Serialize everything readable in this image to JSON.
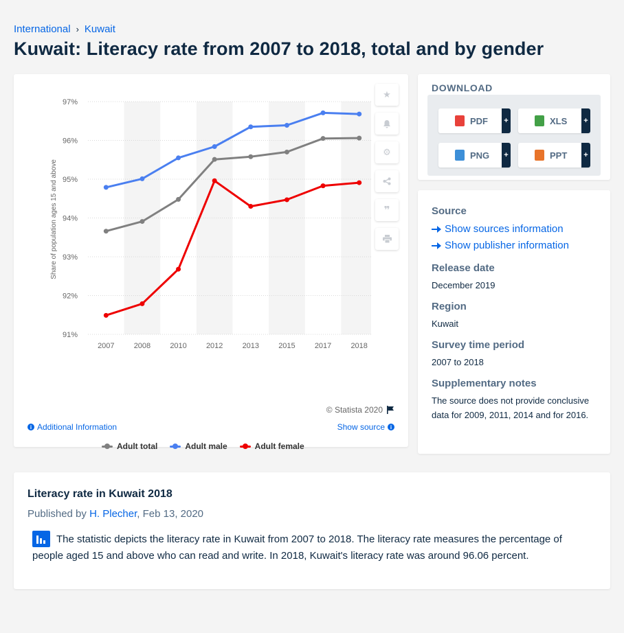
{
  "breadcrumb": {
    "items": [
      "International",
      "Kuwait"
    ],
    "separator": "›"
  },
  "page_title": "Kuwait: Literacy rate from 2007 to 2018, total and by gender",
  "chart_tools": {
    "icons": [
      "star-icon",
      "bell-icon",
      "gear-icon",
      "share-icon",
      "quote-icon",
      "print-icon"
    ]
  },
  "chart_footer": {
    "copyright": "© Statista 2020",
    "additional_info": "Additional Information",
    "show_source": "Show source"
  },
  "chart_data": {
    "type": "line",
    "categories": [
      "2007",
      "2008",
      "2010",
      "2012",
      "2013",
      "2015",
      "2017",
      "2018"
    ],
    "ylabel": "Share of population ages 15 and above",
    "ylim": [
      91,
      97
    ],
    "yticks": [
      "91%",
      "92%",
      "93%",
      "94%",
      "95%",
      "96%",
      "97%"
    ],
    "grid": true,
    "legend_position": "bottom",
    "series": [
      {
        "name": "Adult total",
        "color": "#808080",
        "values": [
          93.66,
          93.91,
          94.48,
          95.51,
          95.58,
          95.7,
          96.05,
          96.06
        ]
      },
      {
        "name": "Adult male",
        "color": "#4a7ff0",
        "values": [
          94.79,
          95.01,
          95.55,
          95.84,
          96.35,
          96.39,
          96.71,
          96.68
        ]
      },
      {
        "name": "Adult female",
        "color": "#ee0000",
        "values": [
          91.49,
          91.79,
          92.68,
          94.96,
          94.3,
          94.47,
          94.83,
          94.91
        ]
      }
    ]
  },
  "download": {
    "heading": "DOWNLOAD",
    "buttons": [
      {
        "label": "PDF",
        "color": "#e8413a"
      },
      {
        "label": "XLS",
        "color": "#43a047"
      },
      {
        "label": "PNG",
        "color": "#3d8fd8"
      },
      {
        "label": "PPT",
        "color": "#e8742a"
      }
    ],
    "plus": "+"
  },
  "meta": {
    "source_head": "Source",
    "show_sources": "Show sources information",
    "show_publisher": "Show publisher information",
    "release_head": "Release date",
    "release_val": "December 2019",
    "region_head": "Region",
    "region_val": "Kuwait",
    "survey_head": "Survey time period",
    "survey_val": "2007 to 2018",
    "notes_head": "Supplementary notes",
    "notes_val": "The source does not provide conclusive data for 2009, 2011, 2014 and for 2016."
  },
  "article": {
    "title": "Literacy rate in Kuwait 2018",
    "published_by": "Published by",
    "author": "H. Plecher",
    "date": ", Feb 13, 2020",
    "text": "The statistic depicts the literacy rate in Kuwait from 2007 to 2018. The literacy rate measures the percentage of people aged 15 and above who can read and write. In 2018, Kuwait's literacy rate was around 96.06 percent."
  }
}
